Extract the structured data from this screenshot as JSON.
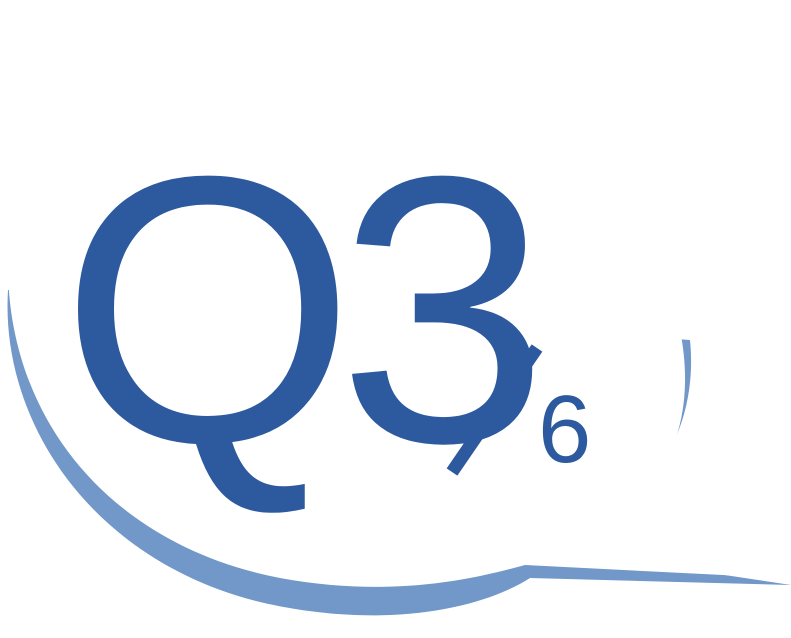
{
  "question": {
    "label": "Q3",
    "separator": "/",
    "total": "6"
  },
  "colors": {
    "text": "#2d5a9e",
    "bubble_fill": "#ffffff",
    "bubble_shadow": "#7198c8"
  }
}
